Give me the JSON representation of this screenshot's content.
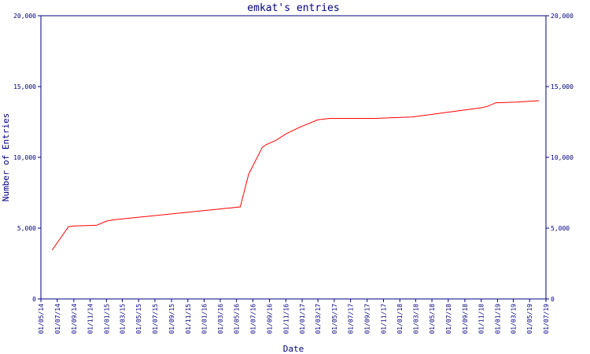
{
  "chart_data": {
    "type": "line",
    "title": "emkat's entries",
    "x_label": "Date",
    "y_label": "Number of Entries",
    "x": [
      "12/06/14",
      "12/08/14",
      "01/09/14",
      "25/11/14",
      "01/01/15",
      "01/02/15",
      "15/05/16",
      "15/06/16",
      "05/08/16",
      "20/08/16",
      "25/09/16",
      "01/11/16",
      "28/11/16",
      "01/01/17",
      "01/03/17",
      "15/04/17",
      "01/10/17",
      "15/02/18",
      "01/11/18",
      "25/11/18",
      "25/12/18",
      "15/03/19",
      "05/06/19"
    ],
    "series": [
      {
        "name": "entries",
        "color": "#ff0000",
        "values": [
          3450,
          5100,
          5150,
          5200,
          5500,
          5600,
          6500,
          8800,
          10700,
          10900,
          11200,
          11650,
          11900,
          12200,
          12650,
          12750,
          12750,
          12850,
          13500,
          13600,
          13850,
          13900,
          14000
        ]
      }
    ],
    "xlim": [
      "01/05/14",
      "01/07/19"
    ],
    "xticks": [
      "01/05/14",
      "01/07/14",
      "01/09/14",
      "01/11/14",
      "01/01/15",
      "01/03/15",
      "01/05/15",
      "01/07/15",
      "01/09/15",
      "01/11/15",
      "01/01/16",
      "01/03/16",
      "01/05/16",
      "01/07/16",
      "01/09/16",
      "01/11/16",
      "01/01/17",
      "01/03/17",
      "01/05/17",
      "01/07/17",
      "01/09/17",
      "01/11/17",
      "01/01/18",
      "01/03/18",
      "01/05/18",
      "01/07/18",
      "01/09/18",
      "01/11/18",
      "01/01/19",
      "01/03/19",
      "01/05/19",
      "01/07/19"
    ],
    "ylim": [
      0,
      20000
    ],
    "yticks": [
      0,
      {
        "value": 5000,
        "label": "5,000"
      },
      {
        "value": 10000,
        "label": "10,000"
      },
      {
        "value": 15000,
        "label": "15,000"
      },
      {
        "value": 20000,
        "label": "20,000"
      }
    ],
    "axis_color": "#000080"
  }
}
